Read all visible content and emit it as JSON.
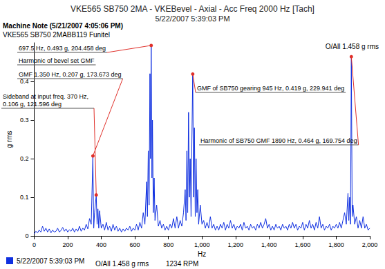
{
  "chart_data": {
    "type": "line",
    "title": "VKE565 SB750 2MA - VKEBevel - Axial - Acc Freq 2000 Hz [Tach]",
    "subtitle": "5/22/2007 5:39:03 PM",
    "note_title": "Machine Note (5/21/2007 4:05:06 PM)",
    "note_text": "VKE565 SB750 2MABB119 Funitel",
    "overall": "O/All 1.458 g rms",
    "speed": "1234 RPM",
    "x_label": "Hz",
    "y_label": "g rms",
    "x": [
      0,
      10,
      20,
      30,
      40,
      50,
      60,
      70,
      80,
      90,
      100,
      110,
      120,
      130,
      140,
      150,
      160,
      170,
      180,
      190,
      200,
      210,
      220,
      230,
      240,
      250,
      260,
      270,
      280,
      290,
      300,
      310,
      320,
      330,
      340,
      350,
      355,
      360,
      370,
      375,
      380,
      385,
      390,
      400,
      410,
      420,
      430,
      440,
      450,
      460,
      470,
      480,
      490,
      500,
      510,
      520,
      530,
      540,
      550,
      560,
      570,
      580,
      590,
      600,
      610,
      620,
      630,
      640,
      650,
      660,
      670,
      675,
      680,
      685,
      690,
      693,
      697.5,
      702,
      705,
      710,
      715,
      720,
      730,
      740,
      750,
      760,
      770,
      780,
      790,
      800,
      810,
      820,
      830,
      840,
      850,
      860,
      870,
      880,
      890,
      900,
      905,
      910,
      915,
      920,
      925,
      930,
      935,
      940,
      945,
      950,
      955,
      960,
      965,
      970,
      975,
      980,
      990,
      1000,
      1010,
      1020,
      1030,
      1040,
      1050,
      1060,
      1070,
      1080,
      1090,
      1100,
      1110,
      1120,
      1130,
      1140,
      1150,
      1160,
      1170,
      1180,
      1190,
      1200,
      1210,
      1220,
      1230,
      1240,
      1250,
      1260,
      1270,
      1280,
      1290,
      1300,
      1310,
      1320,
      1330,
      1340,
      1350,
      1360,
      1370,
      1380,
      1390,
      1400,
      1410,
      1420,
      1430,
      1440,
      1450,
      1460,
      1470,
      1480,
      1490,
      1500,
      1510,
      1520,
      1530,
      1540,
      1550,
      1560,
      1570,
      1580,
      1590,
      1600,
      1610,
      1620,
      1630,
      1640,
      1650,
      1660,
      1670,
      1680,
      1690,
      1700,
      1710,
      1720,
      1730,
      1740,
      1750,
      1760,
      1770,
      1780,
      1790,
      1800,
      1810,
      1820,
      1830,
      1840,
      1850,
      1860,
      1870,
      1875,
      1880,
      1885,
      1890,
      1895,
      1900,
      1910,
      1920,
      1930,
      1940,
      1950,
      1960,
      1970,
      1980,
      1990,
      2000
    ],
    "series": [
      {
        "name": "5/22/2007 5:39:03 PM",
        "color": "#1030e0",
        "values": [
          0.005,
          0.012,
          0.008,
          0.015,
          0.01,
          0.025,
          0.012,
          0.02,
          0.01,
          0.018,
          0.008,
          0.015,
          0.01,
          0.012,
          0.02,
          0.01,
          0.014,
          0.022,
          0.012,
          0.018,
          0.01,
          0.016,
          0.012,
          0.02,
          0.01,
          0.018,
          0.012,
          0.025,
          0.012,
          0.02,
          0.015,
          0.03,
          0.018,
          0.045,
          0.03,
          0.207,
          0.02,
          0.06,
          0.106,
          0.03,
          0.07,
          0.02,
          0.065,
          0.02,
          0.03,
          0.015,
          0.035,
          0.015,
          0.025,
          0.012,
          0.03,
          0.015,
          0.025,
          0.012,
          0.02,
          0.01,
          0.018,
          0.012,
          0.02,
          0.015,
          0.025,
          0.012,
          0.02,
          0.015,
          0.03,
          0.015,
          0.035,
          0.02,
          0.06,
          0.03,
          0.14,
          0.05,
          0.22,
          0.08,
          0.42,
          0.2,
          0.493,
          0.15,
          0.3,
          0.06,
          0.15,
          0.04,
          0.08,
          0.025,
          0.04,
          0.02,
          0.03,
          0.015,
          0.025,
          0.015,
          0.03,
          0.02,
          0.045,
          0.02,
          0.05,
          0.02,
          0.04,
          0.025,
          0.06,
          0.12,
          0.04,
          0.22,
          0.06,
          0.32,
          0.1,
          0.2,
          0.05,
          0.25,
          0.419,
          0.1,
          0.28,
          0.05,
          0.2,
          0.06,
          0.12,
          0.03,
          0.08,
          0.03,
          0.04,
          0.02,
          0.035,
          0.02,
          0.05,
          0.02,
          0.03,
          0.015,
          0.025,
          0.015,
          0.03,
          0.02,
          0.035,
          0.015,
          0.03,
          0.02,
          0.04,
          0.02,
          0.03,
          0.015,
          0.025,
          0.02,
          0.03,
          0.015,
          0.035,
          0.02,
          0.025,
          0.015,
          0.03,
          0.02,
          0.025,
          0.015,
          0.03,
          0.02,
          0.035,
          0.02,
          0.03,
          0.045,
          0.02,
          0.03,
          0.015,
          0.025,
          0.015,
          0.03,
          0.02,
          0.025,
          0.015,
          0.03,
          0.02,
          0.025,
          0.015,
          0.03,
          0.02,
          0.035,
          0.02,
          0.03,
          0.015,
          0.025,
          0.02,
          0.035,
          0.015,
          0.03,
          0.02,
          0.04,
          0.02,
          0.03,
          0.015,
          0.035,
          0.02,
          0.05,
          0.02,
          0.03,
          0.015,
          0.025,
          0.02,
          0.03,
          0.015,
          0.025,
          0.02,
          0.03,
          0.02,
          0.035,
          0.02,
          0.04,
          0.06,
          0.03,
          0.11,
          0.04,
          0.1,
          0.03,
          0.464,
          0.05,
          0.08,
          0.03,
          0.05,
          0.02,
          0.04,
          0.02,
          0.05,
          0.02,
          0.03,
          0.015,
          0.02
        ]
      }
    ],
    "xlim": [
      0,
      2000
    ],
    "xticks": [
      0,
      200,
      400,
      600,
      800,
      {
        "value": 1000,
        "label": "1,000"
      },
      {
        "value": 1200,
        "label": "1,200"
      },
      {
        "value": 1400,
        "label": "1,400"
      },
      {
        "value": 1600,
        "label": "1,600"
      },
      {
        "value": 1800,
        "label": "1,800"
      },
      {
        "value": 2000,
        "label": "2,000"
      }
    ],
    "ylim": [
      0,
      0.5
    ],
    "yticks": [
      0,
      0.1,
      0.2,
      0.3,
      0.4
    ],
    "grid": false,
    "legend": "bottom left",
    "annotations": [
      {
        "text": "697.5 Hz, 0.493 g, 204.458 deg",
        "x": 697.5,
        "y": 0.493
      },
      {
        "text": "Harmonic of bevel set GMF"
      },
      {
        "text": "GMF 1.350 Hz, 0.207 g, 173.673 deg",
        "x": 350,
        "y": 0.207
      },
      {
        "text": "Sideband at input freq. 370 Hz, 0.106 g, 121.596 deg",
        "x": 370,
        "y": 0.106
      },
      {
        "text": "GMF of SB750 gearing 945 Hz, 0.419 g, 229.941 deg",
        "x": 945,
        "y": 0.419
      },
      {
        "text": "Harmonic of SB750 GMF 1890 Hz, 0.464 g, 169.754 deg",
        "x": 1890,
        "y": 0.464
      }
    ]
  }
}
